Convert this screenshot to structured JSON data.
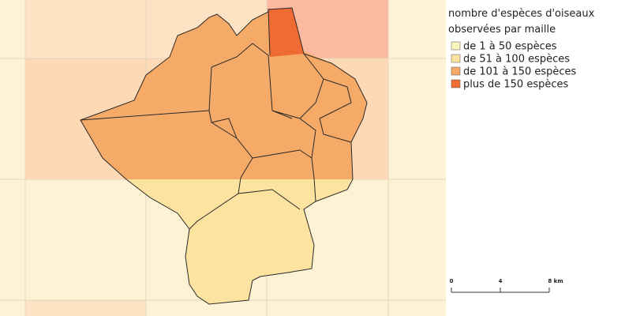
{
  "legend": {
    "title_lines": [
      "nombre d'espèces d'oiseaux",
      "observées par maille"
    ],
    "items": [
      {
        "label": "de 1 à 50 espèces",
        "color": "#fdf5bf"
      },
      {
        "label": "de 51 à 100 espèces",
        "color": "#fde3a0"
      },
      {
        "label": "de 101 à 150 espèces",
        "color": "#f5aa68"
      },
      {
        "label": "plus de 150 espèces",
        "color": "#f06a33"
      }
    ]
  },
  "scale_bar": {
    "labels": [
      "0",
      "4",
      "8 km"
    ]
  }
}
